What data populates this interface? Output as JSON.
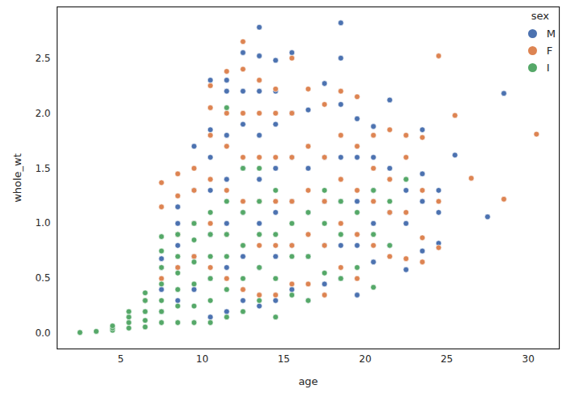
{
  "chart_data": {
    "type": "scatter",
    "x_label": "age",
    "y_label": "whole_wt",
    "legend_title": "sex",
    "legend": "upper right",
    "grid": false,
    "marker": "circle",
    "xlim": [
      1.1,
      31.9
    ],
    "ylim": [
      -0.139,
      2.965
    ],
    "xticks": [
      5,
      10,
      15,
      20,
      25,
      30
    ],
    "yticks": [
      {
        "value": 0,
        "label": "0.0"
      },
      {
        "value": 0.5,
        "label": "0.5"
      },
      {
        "value": 1,
        "label": "1.0"
      },
      {
        "value": 1.5,
        "label": "1.5"
      },
      {
        "value": 2,
        "label": "2.0"
      },
      {
        "value": 2.5,
        "label": "2.5"
      }
    ],
    "series": [
      {
        "name": "M",
        "color": "#4c72b0",
        "x": [
          6.5,
          7.5,
          7.5,
          7.5,
          7.5,
          8.5,
          8.5,
          8.5,
          8.5,
          8.5,
          9.5,
          9.5,
          9.5,
          9.5,
          9.5,
          10.5,
          10.5,
          10.5,
          10.5,
          10.5,
          10.5,
          10.5,
          11.5,
          11.5,
          11.5,
          11.5,
          11.5,
          11.5,
          11.5,
          12.5,
          12.5,
          12.5,
          12.5,
          12.5,
          12.5,
          12.5,
          13.5,
          13.5,
          13.5,
          13.5,
          13.5,
          13.5,
          13.5,
          13.5,
          14.5,
          14.5,
          14.5,
          14.5,
          14.5,
          14.5,
          14.5,
          15.5,
          15.5,
          15.5,
          15.5,
          15.5,
          15.5,
          16.5,
          16.5,
          16.5,
          16.5,
          16.5,
          17.5,
          17.5,
          17.5,
          17.5,
          17.5,
          18.5,
          18.5,
          18.5,
          18.5,
          18.5,
          18.5,
          18.5,
          19.5,
          19.5,
          19.5,
          19.5,
          19.5,
          20.5,
          20.5,
          20.5,
          20.5,
          20.5,
          21.5,
          21.5,
          21.5,
          21.5,
          22.5,
          22.5,
          22.5,
          23.5,
          23.5,
          23.5,
          23.5,
          24.5,
          24.5,
          24.5,
          25.5,
          27.5,
          28.5
        ],
        "values": [
          0.3,
          0.2,
          0.4,
          0.6,
          0.68,
          0.3,
          0.6,
          0.8,
          1.0,
          1.15,
          0.4,
          0.7,
          1.0,
          1.3,
          1.7,
          0.15,
          0.5,
          0.9,
          1.3,
          1.6,
          1.85,
          2.3,
          0.2,
          0.6,
          1.0,
          1.4,
          1.8,
          2.2,
          2.3,
          0.3,
          0.7,
          1.1,
          1.5,
          1.9,
          2.2,
          2.55,
          0.25,
          0.6,
          1.0,
          1.4,
          1.8,
          2.2,
          2.52,
          2.78,
          0.3,
          0.7,
          1.1,
          1.5,
          1.9,
          2.2,
          2.48,
          0.4,
          0.8,
          1.2,
          1.6,
          2.0,
          2.55,
          0.3,
          0.7,
          1.1,
          1.5,
          2.03,
          0.45,
          0.8,
          1.2,
          1.6,
          2.27,
          0.5,
          0.8,
          1.2,
          1.6,
          2.08,
          2.5,
          2.82,
          0.35,
          0.8,
          1.2,
          1.6,
          1.95,
          0.65,
          1.0,
          1.3,
          1.6,
          1.88,
          0.8,
          1.1,
          1.5,
          2.12,
          0.58,
          1.0,
          1.3,
          0.75,
          1.2,
          1.45,
          1.85,
          0.82,
          1.1,
          1.3,
          1.62,
          1.06,
          2.18
        ]
      },
      {
        "name": "F",
        "color": "#dd8452",
        "x": [
          6.5,
          7.5,
          7.5,
          7.5,
          8.5,
          8.5,
          8.5,
          8.5,
          9.5,
          9.5,
          9.5,
          9.5,
          10.5,
          10.5,
          10.5,
          10.5,
          10.5,
          10.5,
          11.5,
          11.5,
          11.5,
          11.5,
          11.5,
          11.5,
          12.5,
          12.5,
          12.5,
          12.5,
          12.5,
          12.5,
          12.5,
          13.5,
          13.5,
          13.5,
          13.5,
          13.5,
          13.5,
          14.5,
          14.5,
          14.5,
          14.5,
          14.5,
          14.5,
          15.5,
          15.5,
          15.5,
          15.5,
          15.5,
          15.5,
          16.5,
          16.5,
          16.5,
          16.5,
          16.5,
          17.5,
          17.5,
          17.5,
          17.5,
          17.5,
          18.5,
          18.5,
          18.5,
          18.5,
          18.5,
          19.5,
          19.5,
          19.5,
          19.5,
          19.5,
          20.5,
          20.5,
          20.5,
          20.5,
          21.5,
          21.5,
          21.5,
          21.5,
          22.5,
          22.5,
          22.5,
          22.5,
          23.5,
          23.5,
          23.5,
          23.5,
          24.5,
          24.5,
          24.5,
          25.5,
          26.5,
          28.5,
          30.5
        ],
        "values": [
          0.3,
          0.5,
          1.15,
          1.37,
          0.6,
          0.9,
          1.25,
          1.45,
          0.7,
          1.0,
          1.3,
          1.5,
          0.6,
          1.0,
          1.4,
          1.8,
          2.05,
          2.25,
          0.5,
          0.9,
          1.3,
          1.7,
          2.0,
          2.38,
          0.4,
          0.8,
          1.2,
          1.6,
          2.0,
          2.4,
          2.65,
          0.35,
          0.8,
          1.2,
          1.6,
          2.0,
          2.3,
          0.35,
          0.8,
          1.2,
          1.6,
          2.0,
          2.22,
          0.45,
          0.8,
          1.2,
          1.6,
          2.0,
          2.5,
          0.45,
          0.9,
          1.3,
          1.7,
          2.22,
          0.35,
          0.8,
          1.2,
          1.6,
          2.08,
          0.6,
          1.0,
          1.4,
          1.8,
          2.2,
          0.5,
          0.9,
          1.3,
          1.7,
          2.15,
          0.8,
          1.2,
          1.5,
          1.8,
          0.7,
          1.1,
          1.4,
          1.85,
          0.68,
          1.1,
          1.6,
          1.8,
          0.65,
          0.87,
          1.3,
          1.78,
          0.78,
          1.2,
          2.52,
          1.98,
          1.41,
          1.22,
          1.81
        ]
      },
      {
        "name": "I",
        "color": "#55a868",
        "x": [
          2.5,
          3.5,
          4.5,
          4.5,
          4.5,
          5.5,
          5.5,
          5.5,
          5.5,
          6.5,
          6.5,
          6.5,
          6.5,
          6.5,
          7.5,
          7.5,
          7.5,
          7.5,
          7.5,
          7.5,
          7.5,
          8.5,
          8.5,
          8.5,
          8.5,
          8.5,
          8.5,
          9.5,
          9.5,
          9.5,
          9.5,
          9.5,
          9.5,
          10.5,
          10.5,
          10.5,
          10.5,
          10.5,
          10.5,
          11.5,
          11.5,
          11.5,
          11.5,
          11.5,
          11.5,
          12.5,
          12.5,
          12.5,
          12.5,
          12.5,
          13.5,
          13.5,
          13.5,
          13.5,
          13.5,
          14.5,
          14.5,
          14.5,
          14.5,
          15.5,
          15.5,
          15.5,
          16.5,
          16.5,
          16.5,
          17.5,
          17.5,
          17.5,
          18.5,
          18.5,
          18.5,
          19.5,
          19.5,
          20.5,
          20.5,
          20.5,
          21.5,
          21.5,
          22.5
        ],
        "values": [
          0.01,
          0.02,
          0.03,
          0.05,
          0.07,
          0.05,
          0.1,
          0.15,
          0.2,
          0.06,
          0.12,
          0.2,
          0.3,
          0.37,
          0.1,
          0.2,
          0.3,
          0.45,
          0.6,
          0.75,
          0.88,
          0.1,
          0.25,
          0.4,
          0.55,
          0.7,
          0.9,
          0.1,
          0.25,
          0.45,
          0.65,
          0.85,
          1.0,
          0.1,
          0.3,
          0.5,
          0.7,
          0.9,
          1.1,
          0.15,
          0.4,
          0.7,
          0.9,
          1.2,
          2.05,
          0.2,
          0.5,
          0.8,
          1.1,
          1.5,
          0.3,
          0.6,
          0.9,
          1.2,
          1.5,
          0.15,
          0.5,
          0.9,
          1.3,
          0.35,
          0.7,
          1.0,
          0.3,
          0.7,
          1.1,
          0.55,
          1.0,
          1.3,
          0.5,
          0.9,
          1.2,
          0.6,
          1.1,
          0.42,
          0.9,
          1.3,
          0.8,
          1.2,
          1.4
        ]
      }
    ]
  }
}
